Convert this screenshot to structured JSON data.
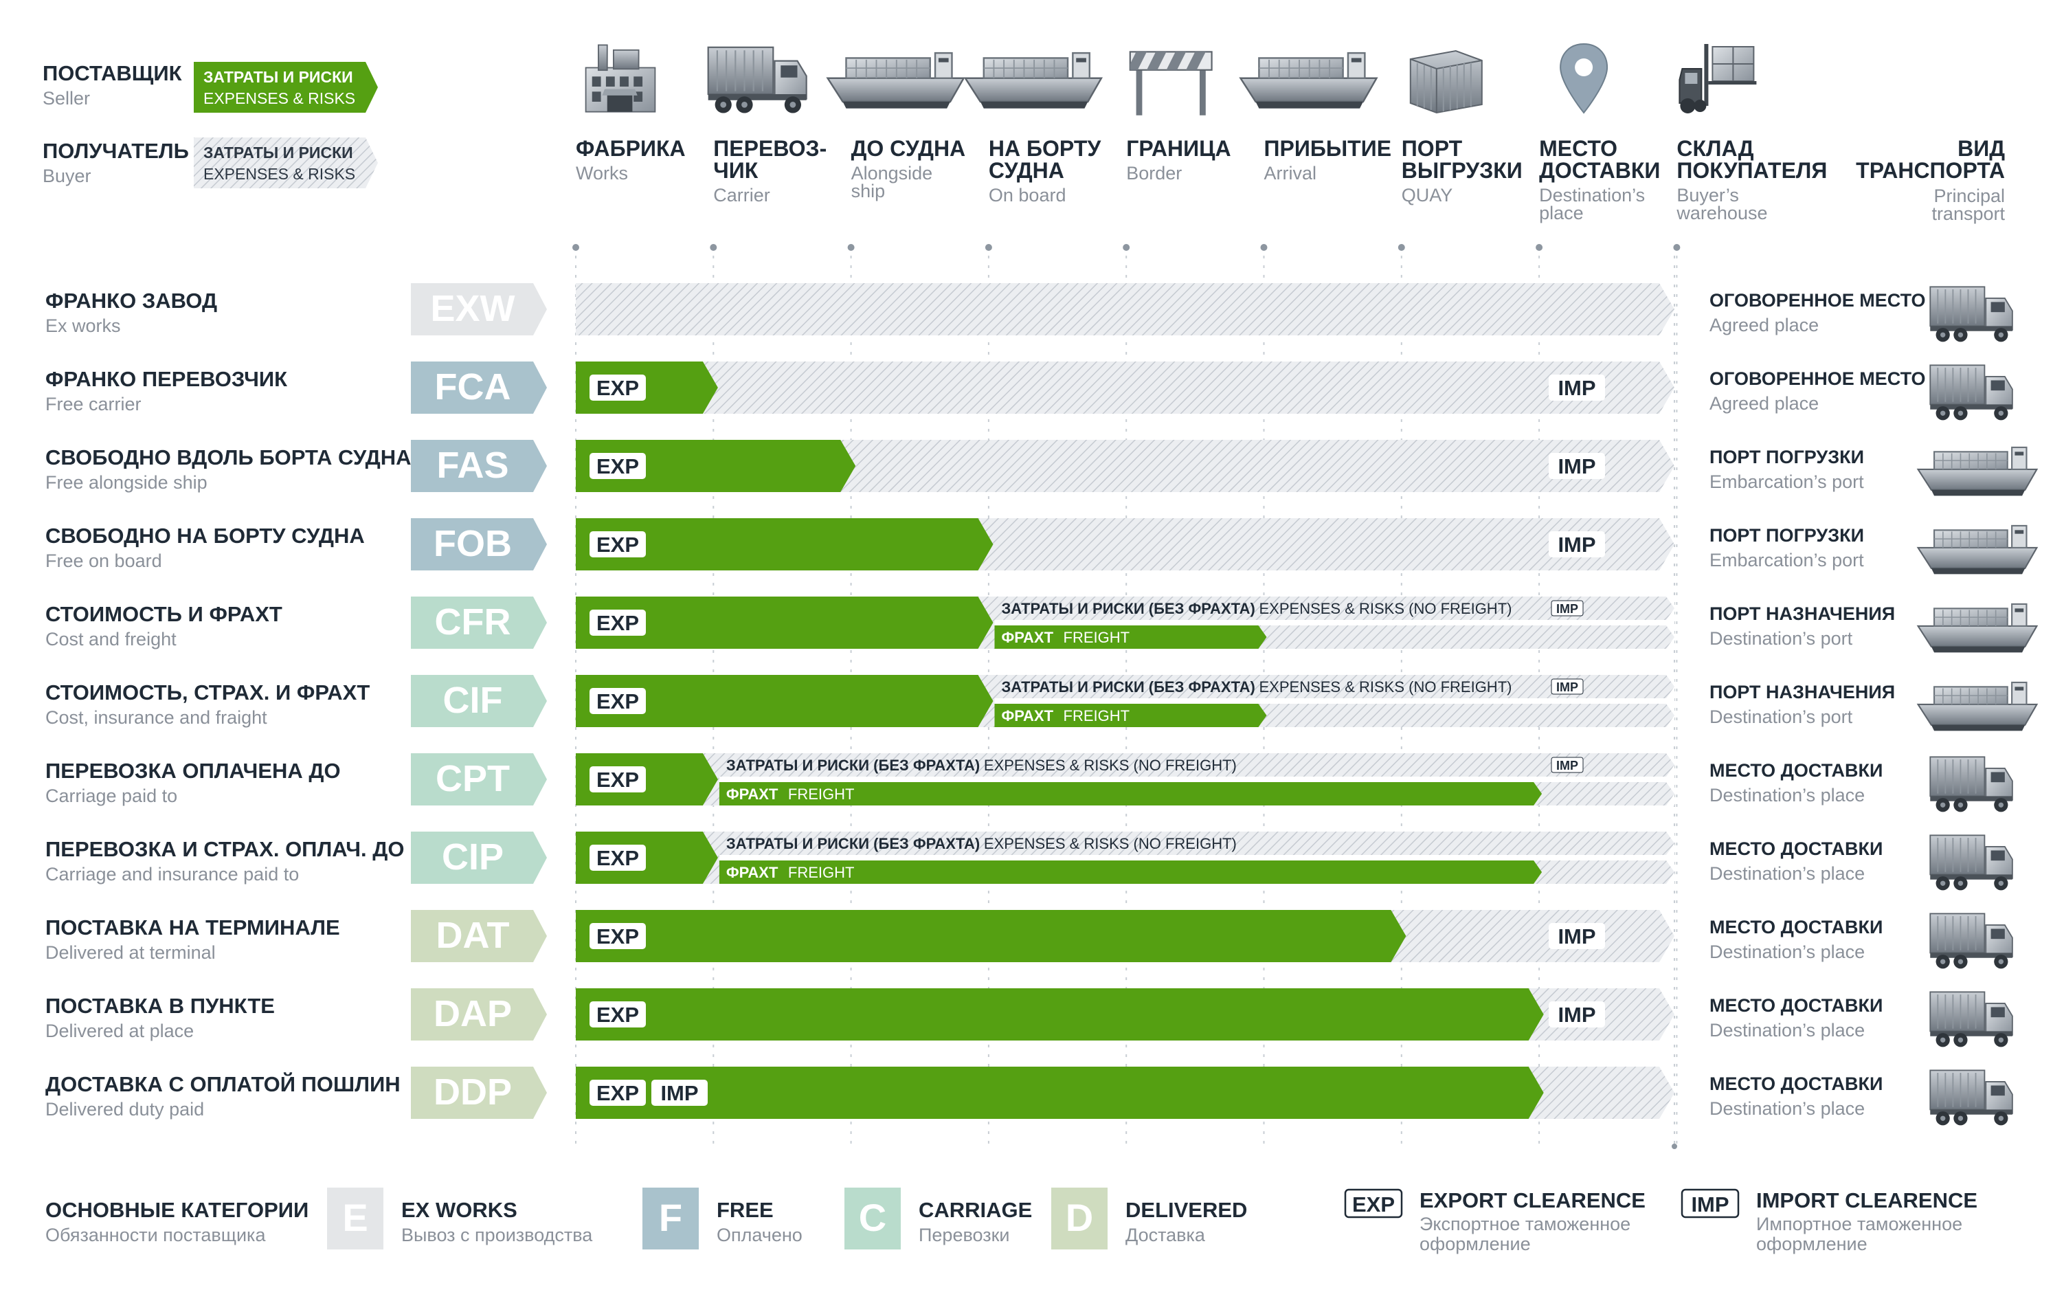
{
  "colors": {
    "green": "#55a012",
    "green_dark": "#3f7d0a",
    "hatch_bg": "#eceef1",
    "hatch_line": "#c5cad1",
    "text_dark": "#1f2a36",
    "text_gray": "#8a9099",
    "dots": "#8d96a0",
    "e_color": "#e4e6e8",
    "f_color": "#a9c2cc",
    "c_color": "#b9dccc",
    "d_color": "#cfdcbf"
  },
  "legend": {
    "seller_ru": "ПОСТАВЩИК",
    "seller_en": "Seller",
    "buyer_ru": "ПОЛУЧАТЕЛЬ",
    "buyer_en": "Buyer",
    "badge_ru": "ЗАТРАТЫ И РИСКИ",
    "badge_en": "EXPENSES & RISKS"
  },
  "stages": [
    {
      "ru": "ФАБРИКА",
      "en": "Works",
      "icon": "factory-icon"
    },
    {
      "ru": "ПЕРЕВОЗ-\nЧИК",
      "en": "Carrier",
      "icon": "truck-icon"
    },
    {
      "ru": "ДО СУДНА",
      "en": "Alongside\nship",
      "icon": "ship-icon"
    },
    {
      "ru": "НА БОРТУ\nСУДНА",
      "en": "On board",
      "icon": "container-ship-icon"
    },
    {
      "ru": "ГРАНИЦА",
      "en": "Border",
      "icon": "barrier-icon"
    },
    {
      "ru": "ПРИБЫТИЕ",
      "en": "Arrival",
      "icon": "container-ship-icon"
    },
    {
      "ru": "ПОРТ\nВЫГРУЗКИ",
      "en": "QUAY",
      "icon": "container-icon"
    },
    {
      "ru": "МЕСТО\nДОСТАВКИ",
      "en": "Destination’s\nplace",
      "icon": "map-pin-icon"
    },
    {
      "ru": "СКЛАД\nПОКУПАТЕЛЯ",
      "en": "Buyer’s\nwarehouse",
      "icon": "forklift-icon"
    }
  ],
  "transport_header": {
    "ru": "ВИД\nТРАНСПОРТА",
    "en": "Principal\ntransport"
  },
  "tags": {
    "exp": "EXP",
    "imp": "IMP"
  },
  "split_labels": {
    "top_ru": "ЗАТРАТЫ И РИСКИ (БЕЗ ФРАХТА)",
    "top_en": "EXPENSES & RISKS (NO FREIGHT)",
    "freight_ru": "ФРАХТ",
    "freight_en": "FREIGHT"
  },
  "terms": [
    {
      "code": "EXW",
      "ru": "ФРАНКО ЗАВОД",
      "en": "Ex works",
      "cat": "E",
      "kind": "full",
      "end": 0,
      "exp": false,
      "imp": false,
      "place_ru": "ОГОВОРЕННОЕ МЕСТО",
      "place_en": "Agreed place",
      "transport": "truck-icon"
    },
    {
      "code": "FCA",
      "ru": "ФРАНКО ПЕРЕВОЗЧИК",
      "en": "Free carrier",
      "cat": "F",
      "kind": "full",
      "end": 1,
      "exp": true,
      "imp": true,
      "place_ru": "ОГОВОРЕННОЕ МЕСТО",
      "place_en": "Agreed place",
      "transport": "truck-icon"
    },
    {
      "code": "FAS",
      "ru": "СВОБОДНО ВДОЛЬ БОРТА СУДНА",
      "en": "Free alongside ship",
      "cat": "F",
      "kind": "full",
      "end": 2,
      "exp": true,
      "imp": true,
      "place_ru": "ПОРТ ПОГРУЗКИ",
      "place_en": "Embarcation’s port",
      "transport": "ship-icon"
    },
    {
      "code": "FOB",
      "ru": "СВОБОДНО НА БОРТУ СУДНА",
      "en": "Free on board",
      "cat": "F",
      "kind": "full",
      "end": 3,
      "exp": true,
      "imp": true,
      "place_ru": "ПОРТ ПОГРУЗКИ",
      "place_en": "Embarcation’s port",
      "transport": "ship-icon"
    },
    {
      "code": "CFR",
      "ru": "СТОИМОСТЬ И ФРАХТ",
      "en": "Cost and freight",
      "cat": "C",
      "kind": "split",
      "end": 3,
      "freight_end": 5,
      "exp": true,
      "imp": true,
      "place_ru": "ПОРТ НАЗНАЧЕНИЯ",
      "place_en": "Destination’s port",
      "transport": "ship-icon"
    },
    {
      "code": "CIF",
      "ru": "СТОИМОСТЬ, СТРАХ. И ФРАХТ",
      "en": "Cost, insurance and fraight",
      "cat": "C",
      "kind": "split",
      "end": 3,
      "freight_end": 5,
      "exp": true,
      "imp": true,
      "place_ru": "ПОРТ НАЗНАЧЕНИЯ",
      "place_en": "Destination’s port",
      "transport": "ship-icon"
    },
    {
      "code": "CPT",
      "ru": "ПЕРЕВОЗКА ОПЛАЧЕНА ДО",
      "en": "Carriage paid to",
      "cat": "C",
      "kind": "split",
      "end": 1,
      "freight_end": 7,
      "exp": true,
      "imp": true,
      "place_ru": "МЕСТО ДОСТАВКИ",
      "place_en": "Destination’s place",
      "transport": "truck-icon"
    },
    {
      "code": "CIP",
      "ru": "ПЕРЕВОЗКА И СТРАХ. ОПЛАЧ. ДО",
      "en": "Carriage and insurance paid to",
      "cat": "C",
      "kind": "split",
      "end": 1,
      "freight_end": 7,
      "exp": true,
      "imp": false,
      "place_ru": "МЕСТО ДОСТАВКИ",
      "place_en": "Destination’s place",
      "transport": "truck-icon"
    },
    {
      "code": "DAT",
      "ru": "ПОСТАВКА НА ТЕРМИНАЛЕ",
      "en": "Delivered at terminal",
      "cat": "D",
      "kind": "full",
      "end": 6,
      "exp": true,
      "imp": true,
      "place_ru": "МЕСТО ДОСТАВКИ",
      "place_en": "Destination’s place",
      "transport": "truck-icon"
    },
    {
      "code": "DAP",
      "ru": "ПОСТАВКА В ПУНКТЕ",
      "en": "Delivered at place",
      "cat": "D",
      "kind": "full",
      "end": 7,
      "exp": true,
      "imp": true,
      "place_ru": "МЕСТО ДОСТАВКИ",
      "place_en": "Destination’s place",
      "transport": "truck-icon"
    },
    {
      "code": "DDP",
      "ru": "ДОСТАВКА С ОПЛАТОЙ ПОШЛИН",
      "en": "Delivered duty paid",
      "cat": "D",
      "kind": "full",
      "end": 7,
      "exp": true,
      "imp": "inline",
      "place_ru": "МЕСТО ДОСТАВКИ",
      "place_en": "Destination’s place",
      "transport": "truck-icon"
    }
  ],
  "categories_header": {
    "ru": "ОСНОВНЫЕ КАТЕГОРИИ",
    "sub": "Обязанности поставщика"
  },
  "categories": [
    {
      "letter": "E",
      "title": "EX WORKS",
      "sub": "Вывоз с производства"
    },
    {
      "letter": "F",
      "title": "FREE",
      "sub": "Оплачено"
    },
    {
      "letter": "C",
      "title": "CARRIAGE",
      "sub": "Перевозки"
    },
    {
      "letter": "D",
      "title": "DELIVERED",
      "sub": "Доставка"
    }
  ],
  "clearance": [
    {
      "tag": "EXP",
      "title": "EXPORT CLEARENCE",
      "sub": "Экспортное таможенное\nоформление"
    },
    {
      "tag": "IMP",
      "title": "IMPORT CLEARENCE",
      "sub": "Импортное таможенное\nоформление"
    }
  ]
}
